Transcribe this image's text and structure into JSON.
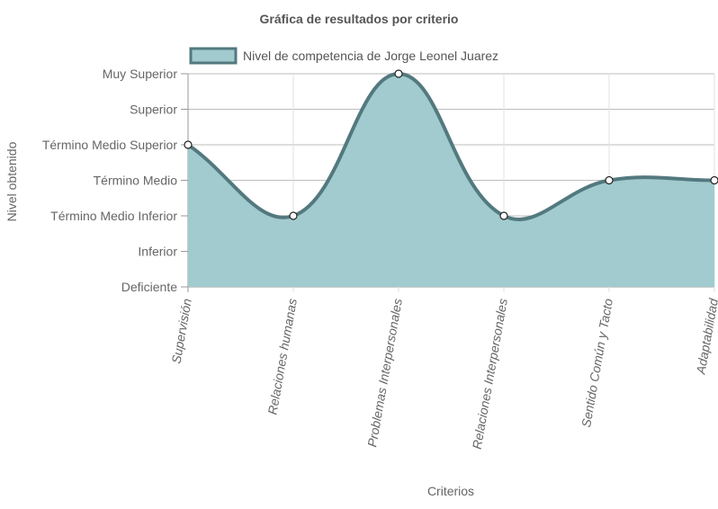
{
  "chart_data": {
    "type": "area",
    "title": "Gráfica de resultados por criterio",
    "xlabel": "Criterios",
    "ylabel": "Nivel obtenido",
    "y_levels": [
      "Deficiente",
      "Inferior",
      "Término Medio Inferior",
      "Término Medio",
      "Término Medio Superior",
      "Superior",
      "Muy Superior"
    ],
    "ylim": [
      0,
      6
    ],
    "categories": [
      "Supervisión",
      "Relaciones humanas",
      "Problemas Interpersonales",
      "Relaciones Interpersonales",
      "Sentido Común y Tacto",
      "Adaptabilidad"
    ],
    "series": [
      {
        "name": "Nivel de competencia de Jorge Leonel Juarez",
        "values": [
          4,
          2,
          6,
          2,
          3,
          3
        ],
        "fill_color": "#a1cbce",
        "line_color": "#53797f"
      }
    ],
    "grid": true,
    "legend_position": "top"
  }
}
